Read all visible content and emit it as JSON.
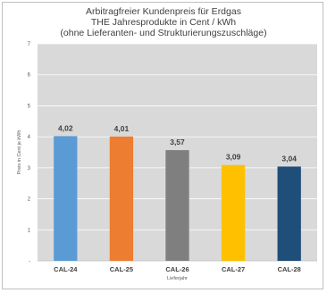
{
  "chart_data": {
    "type": "bar",
    "title": [
      "Arbitragfreier Kundenpreis für Erdgas",
      "THE Jahresprodukte in Cent / kWh",
      "(ohne Lieferanten- und Strukturierungszuschläge)"
    ],
    "xlabel": "Lieferjahr",
    "ylabel": "Preis in Cent je kWh",
    "categories": [
      "CAL-24",
      "CAL-25",
      "CAL-26",
      "CAL-27",
      "CAL-28"
    ],
    "values": [
      4.02,
      4.01,
      3.57,
      3.09,
      3.04
    ],
    "value_labels": [
      "4,02",
      "4,01",
      "3,57",
      "3,09",
      "3,04"
    ],
    "colors": [
      "#5b9bd5",
      "#ed7d31",
      "#7f7f7f",
      "#ffc000",
      "#1f4e79"
    ],
    "ylim": [
      0,
      7
    ],
    "yticks": [
      0,
      1,
      2,
      3,
      4,
      5,
      6,
      7
    ],
    "ytick_labels": [
      "-",
      "1",
      "2",
      "3",
      "4",
      "5",
      "6",
      "7"
    ],
    "grid": true,
    "plot_background": "#d9d9d9",
    "legend": "none"
  }
}
